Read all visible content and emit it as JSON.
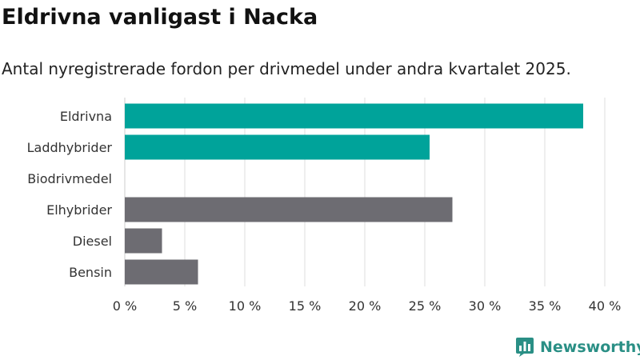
{
  "title": "Eldrivna vanligast i Nacka",
  "subtitle": "Antal nyregistrerade fordon per drivmedel under andra kvartalet 2025.",
  "brand": {
    "name": "Newsworthy",
    "icon": "newsworthy-logo-icon",
    "color": "#2a8f85"
  },
  "colors": {
    "highlight": "#00a39a",
    "other": "#6d6c72",
    "grid": "#dddddd"
  },
  "chart_data": {
    "type": "bar",
    "orientation": "horizontal",
    "title": "Eldrivna vanligast i Nacka",
    "subtitle": "Antal nyregistrerade fordon per drivmedel under andra kvartalet 2025.",
    "categories": [
      "Eldrivna",
      "Laddhybrider",
      "Biodrivmedel",
      "Elhybrider",
      "Diesel",
      "Bensin"
    ],
    "values": [
      38.2,
      25.4,
      0,
      27.3,
      3.1,
      6.1
    ],
    "bar_colors": [
      "#00a39a",
      "#00a39a",
      "#00a39a",
      "#6d6c72",
      "#6d6c72",
      "#6d6c72"
    ],
    "xlim": [
      0,
      40
    ],
    "xticks": [
      "0 %",
      "5 %",
      "10 %",
      "15 %",
      "20 %",
      "25 %",
      "30 %",
      "35 %",
      "40 %"
    ],
    "xlabel": "",
    "ylabel": "",
    "grid": true,
    "legend": "none"
  }
}
